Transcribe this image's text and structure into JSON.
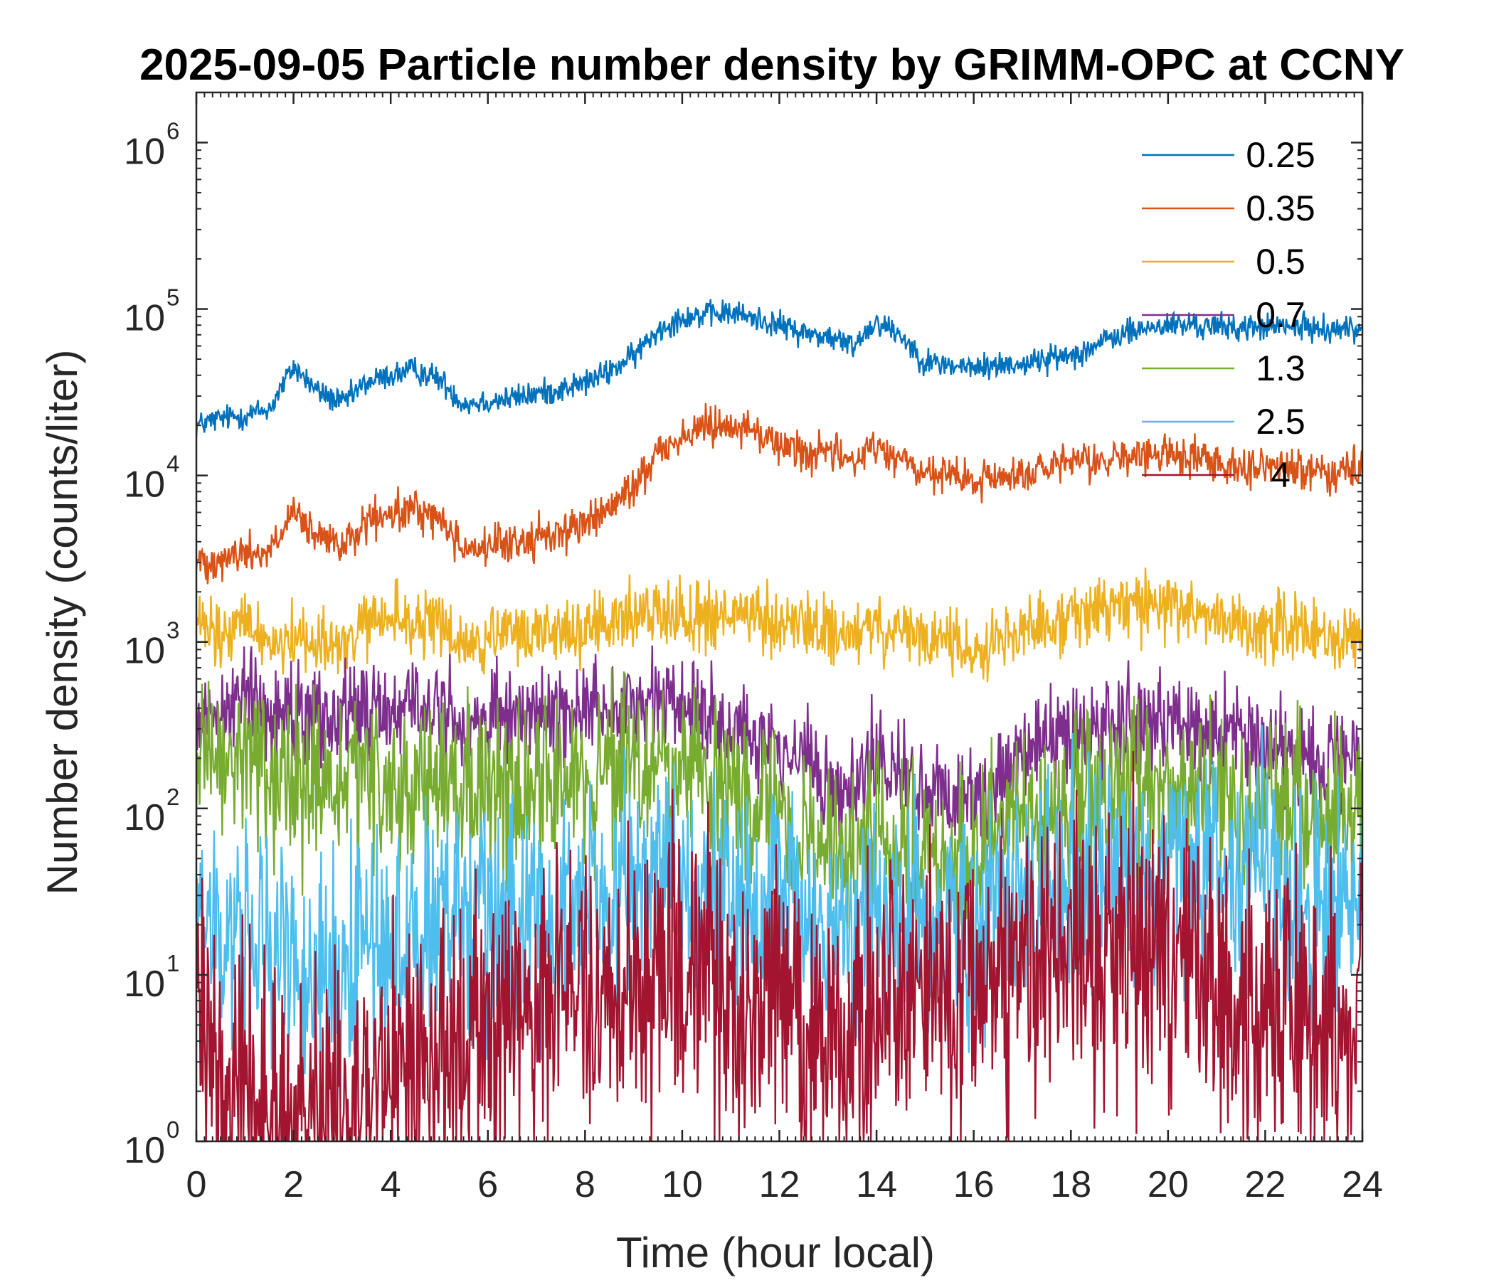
{
  "chart_data": {
    "type": "line",
    "title": "2025-09-05 Particle number density by GRIMM-OPC at CCNY",
    "xlabel": "Time (hour local)",
    "ylabel": "Number density (counts/liter)",
    "xlim": [
      0,
      24
    ],
    "ylim": [
      1,
      2000000
    ],
    "yscale": "log",
    "xticks": [
      0,
      2,
      4,
      6,
      8,
      10,
      12,
      14,
      16,
      18,
      20,
      22,
      24
    ],
    "xtick_labels": [
      "0",
      "2",
      "4",
      "6",
      "8",
      "10",
      "12",
      "14",
      "16",
      "18",
      "20",
      "22",
      "24"
    ],
    "yticks": [
      {
        "value": 1,
        "base": "10",
        "exp": "0"
      },
      {
        "value": 10,
        "base": "10",
        "exp": "1"
      },
      {
        "value": 100,
        "base": "10",
        "exp": "2"
      },
      {
        "value": 1000,
        "base": "10",
        "exp": "3"
      },
      {
        "value": 10000,
        "base": "10",
        "exp": "4"
      },
      {
        "value": 100000,
        "base": "10",
        "exp": "5"
      },
      {
        "value": 1000000,
        "base": "10",
        "exp": "6"
      }
    ],
    "legend_position": "top-right",
    "x": [
      0,
      0.5,
      1,
      1.5,
      2,
      2.5,
      3,
      3.5,
      4,
      4.5,
      5,
      5.5,
      6,
      6.5,
      7,
      7.5,
      8,
      8.5,
      9,
      9.5,
      10,
      10.5,
      11,
      11.5,
      12,
      12.5,
      13,
      13.5,
      14,
      14.5,
      15,
      15.5,
      16,
      16.5,
      17,
      17.5,
      18,
      18.5,
      19,
      19.5,
      20,
      20.5,
      21,
      21.5,
      22,
      22.5,
      23,
      23.5,
      24
    ],
    "series": [
      {
        "name": "0.25",
        "color": "#0072BD",
        "noise": 0.04,
        "values": [
          20000,
          22000,
          23000,
          25000,
          45000,
          32000,
          27000,
          36000,
          40000,
          43000,
          38000,
          27000,
          28000,
          29000,
          31000,
          33000,
          36000,
          42000,
          52000,
          75000,
          90000,
          92000,
          95000,
          88000,
          80000,
          72000,
          68000,
          60000,
          85000,
          70000,
          48000,
          46000,
          44000,
          46000,
          47000,
          50000,
          53000,
          60000,
          70000,
          76000,
          80000,
          80000,
          78000,
          77000,
          78000,
          78000,
          77000,
          76000,
          76000
        ]
      },
      {
        "name": "0.35",
        "color": "#D95319",
        "noise": 0.06,
        "values": [
          3000,
          3200,
          3400,
          3500,
          5800,
          4200,
          3700,
          5200,
          5700,
          6300,
          5500,
          3700,
          3700,
          3900,
          4200,
          4600,
          5200,
          6200,
          8500,
          14000,
          17000,
          20000,
          21000,
          18000,
          15500,
          14000,
          13500,
          12500,
          15000,
          12500,
          10000,
          10000,
          9000,
          9800,
          10200,
          10800,
          11500,
          12200,
          12800,
          13000,
          13500,
          13000,
          12200,
          11500,
          11200,
          11000,
          10800,
          10700,
          10600
        ]
      },
      {
        "name": "0.5",
        "color": "#EDB120",
        "noise": 0.1,
        "values": [
          1300,
          1000,
          1350,
          1000,
          1050,
          1050,
          900,
          1250,
          1400,
          1300,
          1250,
          950,
          1000,
          1100,
          1150,
          1200,
          1150,
          1250,
          1450,
          1550,
          1500,
          1400,
          1450,
          1350,
          1300,
          1250,
          1150,
          1100,
          1200,
          1100,
          1050,
          1000,
          850,
          1100,
          1150,
          1300,
          1400,
          1550,
          1650,
          1700,
          1650,
          1500,
          1400,
          1300,
          1250,
          1200,
          1100,
          1050,
          1000
        ]
      },
      {
        "name": "0.7",
        "color": "#7E2F8E",
        "noise": 0.15,
        "values": [
          400,
          370,
          500,
          350,
          420,
          380,
          360,
          390,
          400,
          420,
          380,
          330,
          320,
          350,
          370,
          380,
          400,
          420,
          450,
          460,
          420,
          360,
          310,
          280,
          230,
          180,
          140,
          120,
          200,
          150,
          130,
          120,
          110,
          160,
          220,
          260,
          300,
          310,
          330,
          350,
          340,
          310,
          290,
          270,
          250,
          230,
          210,
          190,
          180
        ]
      },
      {
        "name": "1.3",
        "color": "#77AC30",
        "noise": 0.25,
        "values": [
          180,
          160,
          230,
          150,
          140,
          130,
          130,
          130,
          135,
          140,
          130,
          120,
          120,
          135,
          145,
          150,
          150,
          160,
          165,
          170,
          160,
          140,
          120,
          100,
          90,
          70,
          55,
          45,
          75,
          55,
          50,
          45,
          50,
          65,
          80,
          95,
          110,
          120,
          130,
          130,
          125,
          120,
          110,
          100,
          95,
          90,
          85,
          80,
          75
        ]
      },
      {
        "name": "2.5",
        "color": "#4DBEEE",
        "noise": 0.35,
        "values": [
          30,
          15,
          20,
          12,
          15,
          10,
          12,
          14,
          16,
          18,
          20,
          18,
          22,
          24,
          26,
          28,
          30,
          32,
          34,
          36,
          35,
          33,
          30,
          28,
          25,
          20,
          18,
          20,
          20,
          25,
          22,
          20,
          25,
          30,
          33,
          35,
          38,
          40,
          42,
          42,
          42,
          40,
          38,
          35,
          32,
          30,
          28,
          27,
          26
        ]
      },
      {
        "name": "4",
        "color": "#A2142F",
        "noise": 0.45,
        "values": [
          6,
          3,
          2,
          1.5,
          1.2,
          1.5,
          1.5,
          2,
          2.5,
          3,
          4,
          4,
          5,
          6,
          7,
          8,
          9,
          10,
          11,
          11,
          10,
          9,
          8,
          7,
          6,
          5,
          4,
          3,
          5,
          7,
          8,
          8,
          7,
          9,
          10,
          12,
          14,
          15,
          14,
          13,
          12,
          10,
          9,
          8,
          7,
          6,
          6,
          6,
          6
        ]
      }
    ]
  }
}
